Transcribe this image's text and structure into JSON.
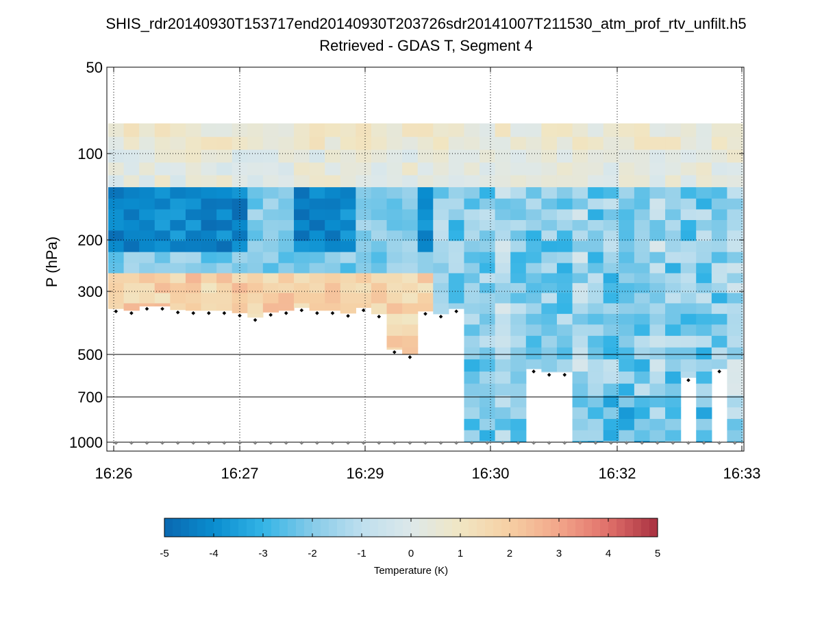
{
  "chart_data": {
    "type": "heatmap",
    "title_line1": "SHIS_rdr20140930T153717end20140930T203726sdr20141007T211530_atm_prof_rtv_unfilt.h5",
    "title_line2": "Retrieved - GDAS T, Segment 4",
    "ylabel": "P (hPa)",
    "y_scale": "log-pressure (inverted)",
    "ylim": [
      50,
      1050
    ],
    "y_ticks": [
      50,
      100,
      200,
      300,
      500,
      700,
      1000
    ],
    "y_tick_labels": [
      "50",
      "100",
      "200",
      "300",
      "500",
      "700",
      "1000"
    ],
    "y_solid_gridlines": [
      500,
      700,
      1000
    ],
    "y_dotted_gridlines": [
      100,
      200,
      300
    ],
    "x_ticks": [
      0,
      1,
      2,
      3,
      4,
      5
    ],
    "x_tick_labels": [
      "16:26",
      "16:27",
      "16:29",
      "16:30",
      "16:32",
      "16:33"
    ],
    "n_profiles": 41,
    "pressure_levels": [
      83,
      92,
      102,
      113,
      125,
      137,
      150,
      163,
      178,
      193,
      210,
      230,
      250,
      270,
      292,
      316,
      345,
      375,
      410,
      450,
      495,
      545,
      600,
      660,
      725,
      795,
      870,
      950,
      1030
    ],
    "surface_pressure": 1000,
    "cloud_top_pressure": [
      345,
      350,
      338,
      338,
      348,
      350,
      350,
      350,
      357,
      370,
      355,
      350,
      342,
      350,
      350,
      358,
      342,
      360,
      480,
      500,
      352,
      360,
      345,
      null,
      null,
      null,
      null,
      560,
      575,
      575,
      null,
      null,
      null,
      null,
      null,
      null,
      null,
      600,
      null,
      560,
      null
    ],
    "colorbar": {
      "label": "Temperature (K)",
      "min": -5,
      "max": 5,
      "ticks": [
        -5,
        -4,
        -3,
        -2,
        -1,
        0,
        1,
        2,
        3,
        4,
        5
      ],
      "tick_labels": [
        "-5",
        "-4",
        "-3",
        "-2",
        "-1",
        "0",
        "1",
        "2",
        "3",
        "4",
        "5"
      ],
      "colors": [
        "#0a68b0",
        "#0a8dcf",
        "#33b4e6",
        "#86cbe8",
        "#bedfee",
        "#dde8ea",
        "#f1e6c3",
        "#f6cfa3",
        "#f2a58a",
        "#e0706a",
        "#a83040"
      ]
    },
    "dot_colors": {
      "cloud": "#000000",
      "surface": "#808080"
    }
  }
}
